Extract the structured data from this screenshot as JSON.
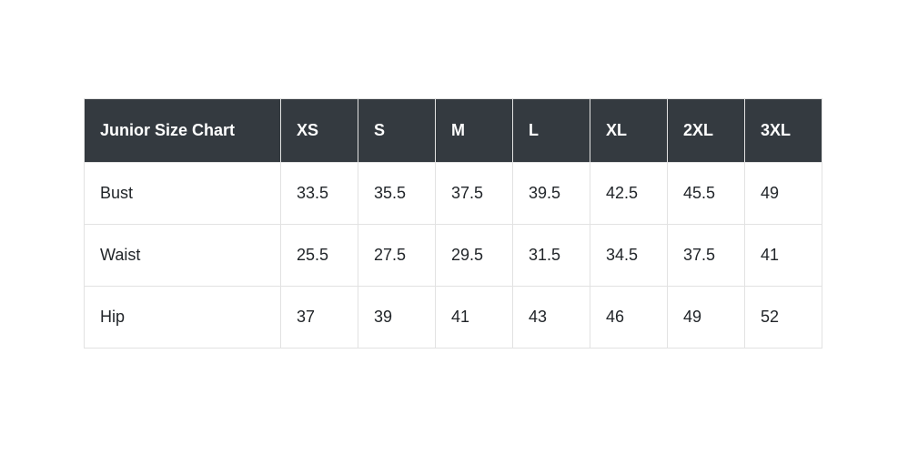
{
  "chart_data": {
    "type": "table",
    "title": "Junior Size Chart",
    "header": {
      "title": "Junior Size Chart",
      "sizes": [
        "XS",
        "S",
        "M",
        "L",
        "XL",
        "2XL",
        "3XL"
      ]
    },
    "rows": [
      {
        "label": "Bust",
        "values": [
          33.5,
          35.5,
          37.5,
          39.5,
          42.5,
          45.5,
          49
        ]
      },
      {
        "label": "Waist",
        "values": [
          25.5,
          27.5,
          29.5,
          31.5,
          34.5,
          37.5,
          41
        ]
      },
      {
        "label": "Hip",
        "values": [
          37,
          39,
          41,
          43,
          46,
          49,
          52
        ]
      }
    ],
    "layout_hints": {
      "header_position": "top",
      "grid": "on",
      "units_shown": false
    }
  },
  "colors": {
    "header_bg": "#343a40",
    "header_text": "#ffffff",
    "body_text": "#212529",
    "border": "#e2e2e2",
    "page_bg": "#ffffff"
  }
}
